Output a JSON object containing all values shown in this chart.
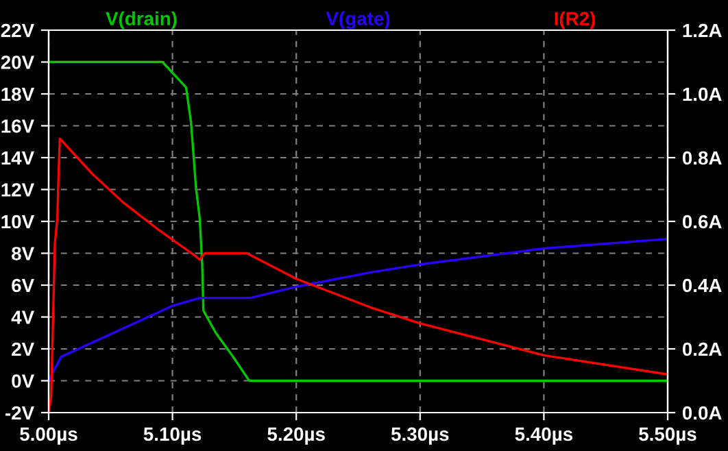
{
  "chart_data": {
    "type": "line",
    "grid": true,
    "marker": "none",
    "line_style": "solid",
    "xlim": [
      5.0,
      5.5
    ],
    "xticks": [
      {
        "value": 5.0,
        "label": "5.00µs"
      },
      {
        "value": 5.1,
        "label": "5.10µs"
      },
      {
        "value": 5.2,
        "label": "5.20µs"
      },
      {
        "value": 5.3,
        "label": "5.30µs"
      },
      {
        "value": 5.4,
        "label": "5.40µs"
      },
      {
        "value": 5.5,
        "label": "5.50µs"
      }
    ],
    "ylim": [
      -2,
      22
    ],
    "yticks": [
      {
        "value": -2,
        "label": "-2V"
      },
      {
        "value": 0,
        "label": "0V"
      },
      {
        "value": 2,
        "label": "2V"
      },
      {
        "value": 4,
        "label": "4V"
      },
      {
        "value": 6,
        "label": "6V"
      },
      {
        "value": 8,
        "label": "8V"
      },
      {
        "value": 10,
        "label": "10V"
      },
      {
        "value": 12,
        "label": "12V"
      },
      {
        "value": 14,
        "label": "14V"
      },
      {
        "value": 16,
        "label": "16V"
      },
      {
        "value": 18,
        "label": "18V"
      },
      {
        "value": 20,
        "label": "20V"
      },
      {
        "value": 22,
        "label": "22V"
      }
    ],
    "y2lim": [
      0,
      1.2
    ],
    "y2ticks": [
      {
        "value": 0,
        "label": "0.0A"
      },
      {
        "value": 0.2,
        "label": "0.2A"
      },
      {
        "value": 0.4,
        "label": "0.4A"
      },
      {
        "value": 0.6,
        "label": "0.6A"
      },
      {
        "value": 0.8,
        "label": "0.8A"
      },
      {
        "value": 1.0,
        "label": "1.0A"
      },
      {
        "value": 1.2,
        "label": "1.2A"
      }
    ],
    "series": [
      {
        "name": "V(drain)",
        "color": "#00c800",
        "x": [
          5.0,
          5.092,
          5.111,
          5.115,
          5.119,
          5.122,
          5.124,
          5.125,
          5.135,
          5.149,
          5.162,
          5.5
        ],
        "values": [
          20,
          20,
          18.4,
          16.2,
          12.1,
          10.2,
          7.3,
          4.4,
          3.0,
          1.5,
          0,
          0
        ]
      },
      {
        "name": "V(gate)",
        "color": "#2800ff",
        "x": [
          5.0,
          5.01,
          5.1,
          5.122,
          5.163,
          5.2,
          5.26,
          5.3,
          5.4,
          5.5
        ],
        "values": [
          0,
          1.5,
          4.7,
          5.2,
          5.2,
          5.9,
          6.8,
          7.3,
          8.3,
          8.9
        ]
      },
      {
        "name": "I(R2)",
        "color": "#ff0000",
        "axis": "y2",
        "x": [
          5.0,
          5.002,
          5.005,
          5.007,
          5.008,
          5.009,
          5.035,
          5.06,
          5.09,
          5.119,
          5.122,
          5.126,
          5.16,
          5.2,
          5.26,
          5.3,
          5.4,
          5.5
        ],
        "values": [
          0.0,
          0.05,
          0.53,
          0.61,
          0.75,
          0.86,
          0.75,
          0.66,
          0.57,
          0.49,
          0.48,
          0.5,
          0.5,
          0.42,
          0.33,
          0.28,
          0.18,
          0.12
        ]
      }
    ]
  }
}
